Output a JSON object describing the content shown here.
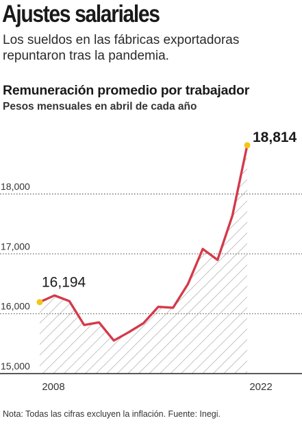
{
  "header": {
    "title": "Ajustes salariales",
    "subtitle": "Los sueldos en las fábricas exportadoras repuntaron tras la pandemia."
  },
  "chart_data": {
    "type": "area",
    "title": "Remuneración promedio por trabajador",
    "subtitle": "Pesos mensuales en abril de cada año",
    "xlabel": "",
    "ylabel": "",
    "x_ticks": [
      "2008",
      "2022"
    ],
    "y_ticks": [
      "15,000",
      "16,000",
      "17,000",
      "18,000"
    ],
    "y_tick_values": [
      15000,
      16000,
      17000,
      18000
    ],
    "ylim": [
      15000,
      19000
    ],
    "xlim": [
      2008,
      2022
    ],
    "grid": true,
    "series": [
      {
        "x": [
          2008,
          2009,
          2010,
          2011,
          2012,
          2013,
          2014,
          2015,
          2016,
          2017,
          2018,
          2019,
          2020,
          2021,
          2022
        ],
        "values": [
          16194,
          16305,
          16210,
          15812,
          15855,
          15552,
          15690,
          15842,
          16115,
          16100,
          16495,
          17082,
          16900,
          17640,
          18814
        ],
        "color": "#d43a4a"
      }
    ],
    "annotations": [
      {
        "label": "16,194",
        "index": 0
      },
      {
        "label": "18,814",
        "index": 14
      }
    ],
    "highlight_color": "#f2c618",
    "hatch_color": "#b5b5b5"
  },
  "footer": {
    "note": "Nota: Todas las cifras excluyen la inflación. Fuente: Inegi."
  }
}
